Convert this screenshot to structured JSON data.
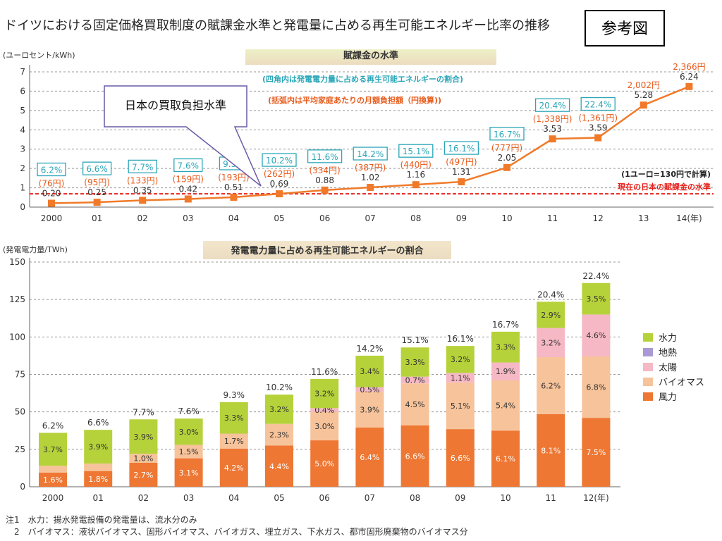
{
  "title": "ドイツにおける固定価格買取制度の賦課金水準と発電量に占める再生可能エネルギー比率の推移",
  "reference_label": "参考図",
  "callout_text": "日本の買取負担水準",
  "notes": [
    "注1　水力：揚水発電設備の発電量は、流水分のみ",
    "　2　バイオマス：液状バイオマス、固形バイオマス、バイオガス、埋立ガス、下水ガス、都市固形廃棄物のバイオマス分"
  ],
  "colors": {
    "line": "#f07a2a",
    "marker": "#f07a2a",
    "japan_line": "#e8201a",
    "pct_box": "#2aa6b8",
    "yen_text": "#e85a1a",
    "title_band_top": "#eef5c8",
    "title_band_bottom": "#ecdcc0",
    "hydro": "#b6d23a",
    "geothermal": "#a99ad6",
    "solar": "#f5b8c4",
    "biomass": "#f7c39a",
    "wind": "#ee7733"
  },
  "chart_data": [
    {
      "type": "line",
      "title": "賦課金の水準",
      "ylabel": "(ユーロセント/kWh)",
      "ylim": [
        0,
        7
      ],
      "yticks": [
        "0",
        "1",
        "2",
        "3",
        "4",
        "5",
        "6",
        "7"
      ],
      "categories": [
        "2000",
        "01",
        "02",
        "03",
        "04",
        "05",
        "06",
        "07",
        "08",
        "09",
        "10",
        "11",
        "12",
        "13",
        "14(年)"
      ],
      "values": [
        0.2,
        0.25,
        0.35,
        0.42,
        0.51,
        0.69,
        0.88,
        1.02,
        1.16,
        1.31,
        2.05,
        3.53,
        3.59,
        5.28,
        6.24
      ],
      "value_labels": [
        "0.20",
        "0.25",
        "0.35",
        "0.42",
        "0.51",
        "0.69",
        "0.88",
        "1.02",
        "1.16",
        "1.31",
        "2.05",
        "3.53",
        "3.59",
        "5.28",
        "6.24"
      ],
      "monthly_yen": [
        "(76円)",
        "(95円)",
        "(133円)",
        "(159円)",
        "(193円)",
        "(262円)",
        "(334円)",
        "(387円)",
        "(440円)",
        "(497円)",
        "(777円)",
        "(1,338円)",
        "(1,361円)",
        "2,002円",
        "2,366円"
      ],
      "renewable_share": [
        "6.2%",
        "6.6%",
        "7.7%",
        "7.6%",
        "9.3%",
        "10.2%",
        "11.6%",
        "14.2%",
        "15.1%",
        "16.1%",
        "16.7%",
        "20.4%",
        "22.4%",
        "",
        ""
      ],
      "japan_level": 0.69,
      "japan_level_label": "現在の日本の賦課金の水準",
      "exchange_note": "(1ユーロ=130円で計算)",
      "annotation_share": "(四角内は発電電力量に占める再生可能エネルギーの割合)",
      "annotation_yen": "(括弧内は平均家庭あたりの月額負担額（円換算))",
      "grid": true
    },
    {
      "type": "bar",
      "title": "発電電力量に占める再生可能エネルギーの割合",
      "ylabel": "(発電電力量/TWh)",
      "ylim": [
        0,
        150
      ],
      "yticks": [
        "0",
        "25",
        "50",
        "75",
        "100",
        "125",
        "150"
      ],
      "categories": [
        "2000",
        "01",
        "02",
        "03",
        "04",
        "05",
        "06",
        "07",
        "08",
        "09",
        "10",
        "11",
        "12(年)"
      ],
      "totals": [
        "6.2%",
        "6.6%",
        "7.7%",
        "7.6%",
        "9.3%",
        "10.2%",
        "11.6%",
        "14.2%",
        "15.1%",
        "16.1%",
        "16.7%",
        "20.4%",
        "22.4%"
      ],
      "series": [
        {
          "name": "風力",
          "values": [
            9.5,
            10.5,
            16,
            19,
            25.5,
            27.5,
            31,
            39.5,
            41,
            38.5,
            37.5,
            48.5,
            46
          ],
          "labels": [
            "1.6%",
            "1.8%",
            "2.7%",
            "3.1%",
            "4.2%",
            "4.4%",
            "5.0%",
            "6.4%",
            "6.6%",
            "6.6%",
            "6.1%",
            "8.1%",
            "7.5%"
          ]
        },
        {
          "name": "バイオマス",
          "values": [
            4.5,
            5,
            6,
            9,
            10,
            14.5,
            19,
            24,
            28,
            31,
            33.5,
            38,
            41
          ],
          "labels": [
            "",
            "",
            "1.0%",
            "1.5%",
            "1.7%",
            "2.3%",
            "3.0%",
            "3.9%",
            "4.5%",
            "5.1%",
            "5.4%",
            "6.2%",
            "6.8%"
          ]
        },
        {
          "name": "太陽",
          "values": [
            0,
            0,
            0,
            0,
            0,
            0,
            2.5,
            3,
            4.5,
            6.5,
            12,
            19.5,
            28
          ],
          "labels": [
            "",
            "",
            "",
            "",
            "",
            "",
            "0.4%",
            "0.5%",
            "0.7%",
            "1.1%",
            "1.9%",
            "3.2%",
            "4.6%"
          ]
        },
        {
          "name": "地熱",
          "values": [
            0,
            0,
            0,
            0,
            0,
            0,
            0,
            0,
            0,
            0,
            0,
            0,
            0
          ],
          "labels": [
            "",
            "",
            "",
            "",
            "",
            "",
            "",
            "",
            "",
            "",
            "",
            "",
            ""
          ]
        },
        {
          "name": "水力",
          "values": [
            22,
            22.5,
            23,
            17.5,
            21,
            19.5,
            19.5,
            21,
            19.5,
            18,
            20.5,
            17.5,
            21
          ],
          "labels": [
            "3.7%",
            "3.9%",
            "3.9%",
            "3.0%",
            "3.3%",
            "3.2%",
            "3.2%",
            "3.4%",
            "3.3%",
            "3.2%",
            "3.3%",
            "2.9%",
            "3.5%"
          ]
        }
      ],
      "legend": [
        "水力",
        "地熱",
        "太陽",
        "バイオマス",
        "風力"
      ],
      "legend_position": "right",
      "grid": true
    }
  ]
}
